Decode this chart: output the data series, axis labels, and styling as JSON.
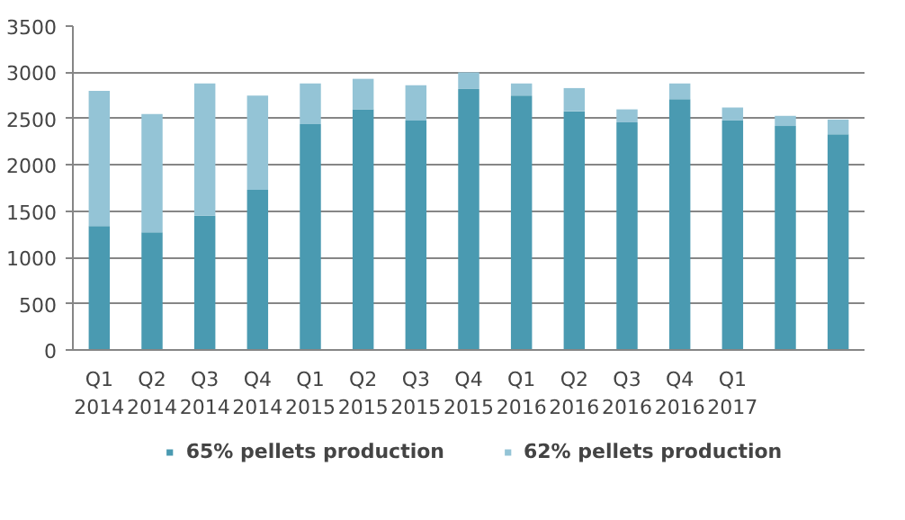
{
  "chart_data": {
    "type": "bar",
    "stacked": true,
    "categories": [
      "Q1\n2014",
      "Q2\n2014",
      "Q3\n2014",
      "Q4\n2014",
      "Q1\n2015",
      "Q2\n2015",
      "Q3\n2015",
      "Q4\n2015",
      "Q1\n2016",
      "Q2\n2016",
      "Q3\n2016",
      "Q4\n2016",
      "Q1\n2017",
      null,
      null
    ],
    "series": [
      {
        "name": "65% pellets production",
        "color": "#4a9ab1",
        "values": [
          1340,
          1270,
          1450,
          1730,
          2440,
          2600,
          2480,
          2820,
          2750,
          2580,
          2460,
          2710,
          2480,
          2420,
          2330
        ]
      },
      {
        "name": "62% pellets production",
        "color": "#94c4d6",
        "values": [
          1460,
          1280,
          1430,
          1020,
          440,
          330,
          380,
          180,
          130,
          250,
          140,
          170,
          140,
          110,
          160
        ]
      }
    ],
    "ylim": [
      0,
      3500
    ],
    "yticks": [
      0,
      500,
      1000,
      1500,
      2000,
      2500,
      3000,
      3500
    ],
    "grid": "y",
    "legend": "bottom"
  }
}
